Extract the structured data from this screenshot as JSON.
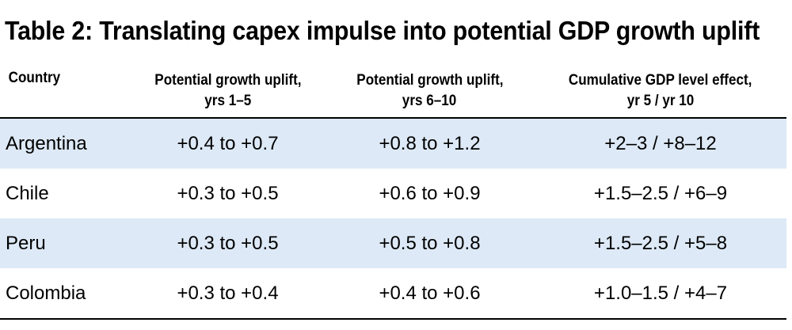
{
  "title": "Table 2: Translating capex impulse into potential GDP growth uplift",
  "colors": {
    "row_shade": "#dde9f6",
    "rule": "#000000"
  },
  "columns": [
    {
      "line1": "Country",
      "line2": ""
    },
    {
      "line1": "Potential growth uplift,",
      "line2": "yrs 1–5"
    },
    {
      "line1": "Potential growth uplift,",
      "line2": "yrs 6–10"
    },
    {
      "line1": "Cumulative GDP level effect,",
      "line2": "yr 5 / yr 10"
    }
  ],
  "rows": [
    {
      "country": "Argentina",
      "uplift_1_5": "+0.4 to +0.7",
      "uplift_6_10": "+0.8 to +1.2",
      "cumulative": "+2–3 / +8–12"
    },
    {
      "country": "Chile",
      "uplift_1_5": "+0.3 to +0.5",
      "uplift_6_10": "+0.6 to +0.9",
      "cumulative": "+1.5–2.5 / +6–9"
    },
    {
      "country": "Peru",
      "uplift_1_5": "+0.3 to +0.5",
      "uplift_6_10": "+0.5 to +0.8",
      "cumulative": "+1.5–2.5 / +5–8"
    },
    {
      "country": "Colombia",
      "uplift_1_5": "+0.3 to +0.4",
      "uplift_6_10": "+0.4 to +0.6",
      "cumulative": "+1.0–1.5 / +4–7"
    }
  ]
}
